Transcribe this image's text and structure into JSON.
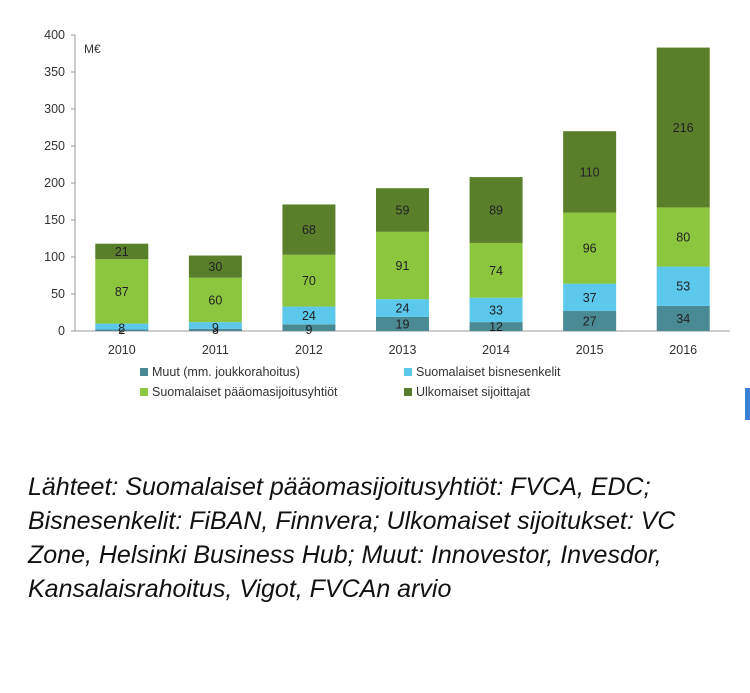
{
  "caption": "Lähteet: Suomalaiset pääomasijoitusyhtiöt: FVCA, EDC; Bisnesenkelit: FiBAN, Finnvera; Ulkomaiset sijoitukset: VC Zone, Helsinki Business Hub; Muut: Innovestor, Invesdor, Kansalaisrahoitus, Vigot, FVCAn arvio",
  "colors": {
    "muut": "#4a8a94",
    "bisnesenkelit": "#5bc8ec",
    "paaoma": "#8cc63f",
    "ulkomaiset": "#5a7f2b"
  },
  "chart_data": {
    "type": "bar",
    "stacked": true,
    "unit": "M€",
    "categories": [
      "2010",
      "2011",
      "2012",
      "2013",
      "2014",
      "2015",
      "2016"
    ],
    "ylim": [
      0,
      400
    ],
    "yticks": [
      0,
      50,
      100,
      150,
      200,
      250,
      300,
      350,
      400
    ],
    "grid": false,
    "legend_position": "bottom",
    "series": [
      {
        "name": "Muut (mm. joukkorahoitus)",
        "color_key": "muut",
        "values": [
          2,
          3,
          9,
          19,
          12,
          27,
          34
        ]
      },
      {
        "name": "Suomalaiset bisnesenkelit",
        "color_key": "bisnesenkelit",
        "values": [
          8,
          9,
          24,
          24,
          33,
          37,
          53
        ]
      },
      {
        "name": "Suomalaiset pääomasijoitusyhtiöt",
        "color_key": "paaoma",
        "values": [
          87,
          60,
          70,
          91,
          74,
          96,
          80
        ]
      },
      {
        "name": "Ulkomaiset sijoittajat",
        "color_key": "ulkomaiset",
        "values": [
          21,
          30,
          68,
          59,
          89,
          110,
          216
        ]
      }
    ]
  }
}
